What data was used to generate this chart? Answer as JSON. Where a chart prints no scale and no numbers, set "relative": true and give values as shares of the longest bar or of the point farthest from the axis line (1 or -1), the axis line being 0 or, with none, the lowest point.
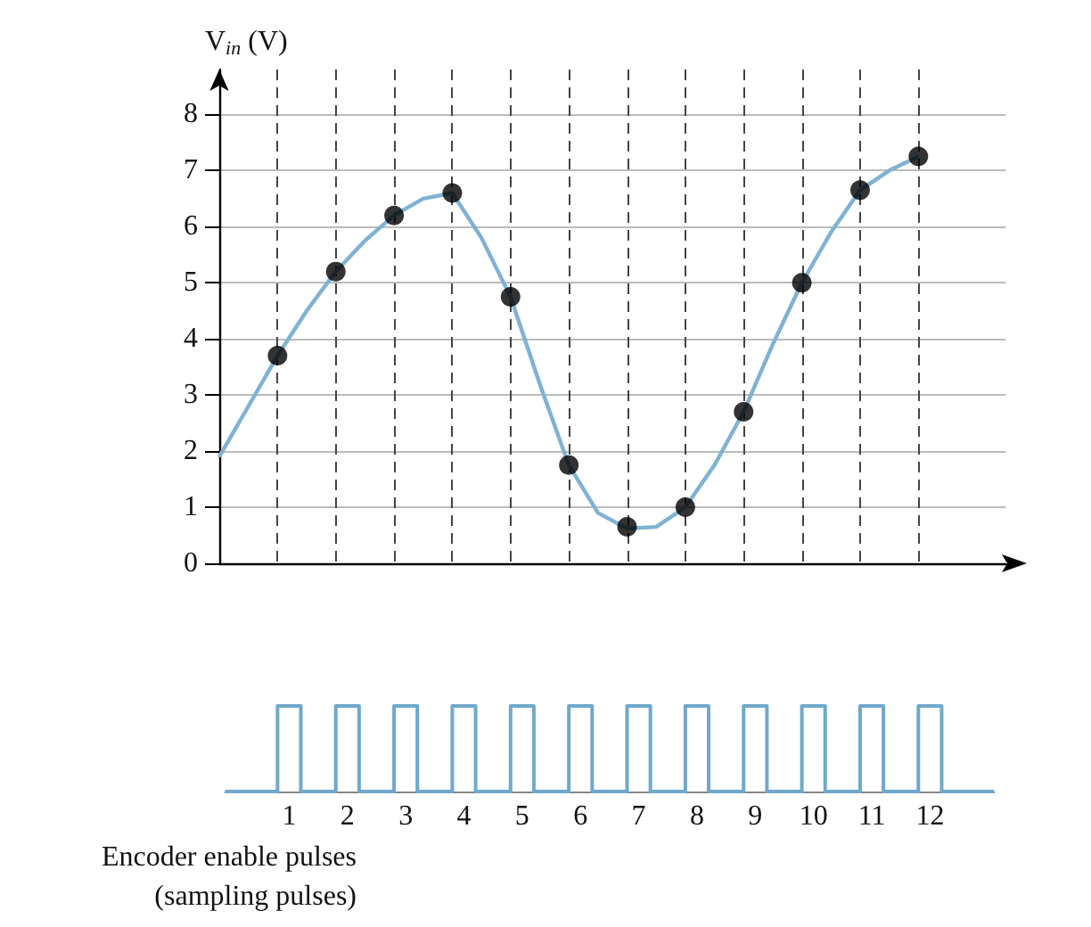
{
  "chart_data": [
    {
      "type": "line",
      "ylabel": "V$_{in}$ (V)",
      "ylim": [
        0,
        8.8
      ],
      "yticks": [
        0,
        1,
        2,
        3,
        4,
        5,
        6,
        7,
        8
      ],
      "grid": true,
      "tick_labels": "y",
      "categories": [
        null,
        null,
        null,
        null,
        null,
        null,
        null,
        null,
        null,
        null,
        null,
        null,
        null,
        null,
        null,
        null,
        null,
        null,
        null,
        null,
        null,
        null,
        null,
        null,
        null,
        null,
        null,
        null
      ],
      "series": [
        {
          "color": "#7fb2d3",
          "marker": "none",
          "values": [
            1.9,
            2.8,
            3.7,
            4.5,
            5.2,
            5.75,
            6.2,
            6.5,
            6.6,
            5.8,
            4.75,
            3.2,
            1.75,
            0.9,
            0.62,
            0.65,
            1.0,
            1.75,
            2.7,
            3.9,
            5.0,
            5.9,
            6.65,
            7.0,
            7.25,
            null,
            null,
            null
          ]
        },
        {
          "type": "scatter",
          "color": "#000000",
          "marker": "circle",
          "values": [
            null,
            null,
            3.7,
            null,
            5.2,
            null,
            6.2,
            null,
            6.6,
            null,
            4.75,
            null,
            1.75,
            null,
            0.65,
            null,
            1.0,
            null,
            2.7,
            null,
            5.0,
            null,
            6.65,
            null,
            7.25,
            null,
            null,
            null
          ]
        }
      ]
    },
    {
      "type": "step",
      "relative": true,
      "color": "#6fa8cc",
      "xlim": [
        0.1,
        13.3
      ],
      "tick_labels": "x",
      "x": [
        0.1,
        1,
        1.4,
        2,
        2.4,
        3,
        3.4,
        4,
        4.4,
        5,
        5.4,
        6,
        6.4,
        7,
        7.4,
        8,
        8.4,
        9,
        9.4,
        10,
        10.4,
        11,
        11.4,
        12,
        12.4,
        13.3
      ],
      "values": [
        0,
        1,
        0,
        1,
        0,
        1,
        0,
        1,
        0,
        1,
        0,
        1,
        0,
        1,
        0,
        1,
        0,
        1,
        0,
        1,
        0,
        1,
        0,
        1,
        0,
        0
      ],
      "xticks": [
        {
          "value": 1.2,
          "label": "1"
        },
        {
          "value": 2.2,
          "label": "2"
        },
        {
          "value": 3.2,
          "label": "3"
        },
        {
          "value": 4.2,
          "label": "4"
        },
        {
          "value": 5.2,
          "label": "5"
        },
        {
          "value": 6.2,
          "label": "6"
        },
        {
          "value": 7.2,
          "label": "7"
        },
        {
          "value": 8.2,
          "label": "8"
        },
        {
          "value": 9.2,
          "label": "9"
        },
        {
          "value": 10.2,
          "label": "10"
        },
        {
          "value": 11.2,
          "label": "11"
        },
        {
          "value": 12.2,
          "label": "12"
        }
      ],
      "annotations": [
        "Encoder enable pulses",
        "(sampling pulses)"
      ]
    }
  ]
}
